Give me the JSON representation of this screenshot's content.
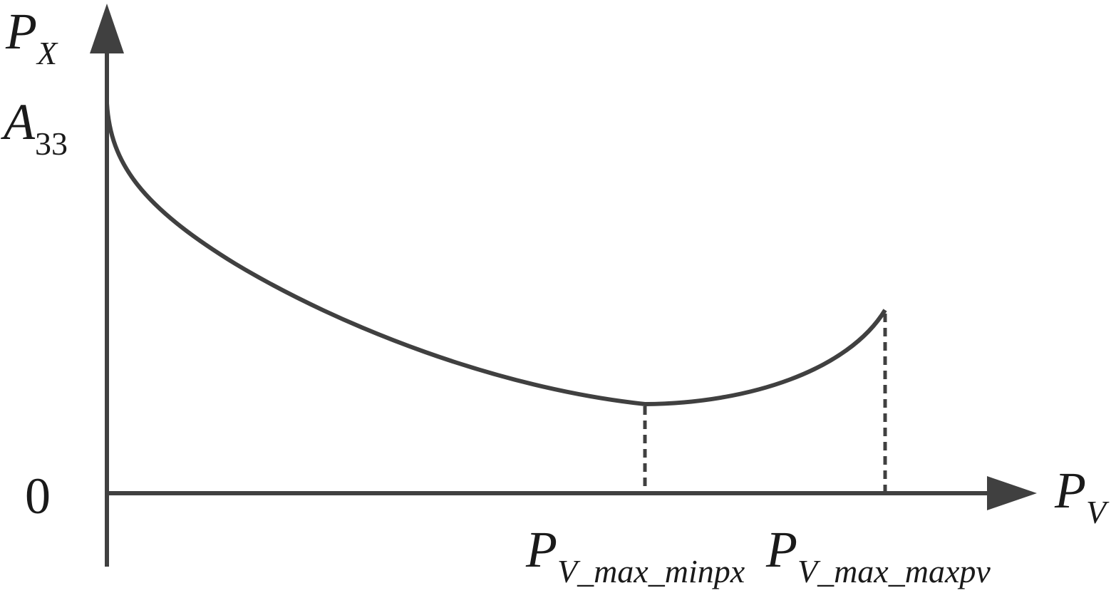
{
  "axes": {
    "y_label": {
      "main": "P",
      "sub": "X"
    },
    "y_mark": {
      "main": "A",
      "sub": "33"
    },
    "origin": "0",
    "x_label": {
      "main": "P",
      "sub": "V"
    },
    "x_marks": [
      {
        "main": "P",
        "sub": "V_max_minpx"
      },
      {
        "main": "P",
        "sub": "V_max_maxpv"
      }
    ]
  }
}
